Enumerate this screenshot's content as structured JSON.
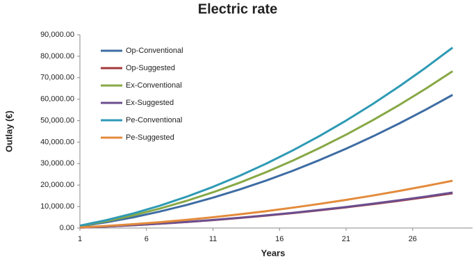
{
  "chart_data": {
    "type": "line",
    "title": "Electric rate",
    "x_label": "Years",
    "y_label": "Outlay (€)",
    "x": [
      1,
      3,
      5,
      7,
      9,
      11,
      13,
      15,
      17,
      19,
      21,
      23,
      25,
      27,
      29
    ],
    "series": [
      {
        "name": "Op-Conventional",
        "color": "#3d6ca3",
        "values": [
          810,
          2720,
          5000,
          7670,
          10710,
          14140,
          17940,
          22120,
          26680,
          31620,
          36940,
          42640,
          48710,
          55170,
          62000
        ]
      },
      {
        "name": "Op-Suggested",
        "color": "#a3393b",
        "values": [
          210,
          710,
          1310,
          2000,
          2800,
          3690,
          4690,
          5780,
          6970,
          8260,
          9650,
          11140,
          12730,
          14420,
          16200
        ]
      },
      {
        "name": "Ex-Conventional",
        "color": "#87a845",
        "values": [
          956,
          3200,
          5890,
          9030,
          12620,
          16640,
          21120,
          26040,
          31410,
          37230,
          43490,
          50200,
          57350,
          64950,
          73000
        ]
      },
      {
        "name": "Ex-Suggested",
        "color": "#6b4f90",
        "values": [
          220,
          720,
          1330,
          2040,
          2850,
          3760,
          4770,
          5880,
          7100,
          8410,
          9820,
          11340,
          12960,
          14680,
          16500
        ]
      },
      {
        "name": "Pe-Conventional",
        "color": "#2e9ab4",
        "values": [
          1100,
          3680,
          6780,
          10390,
          14520,
          19150,
          24310,
          29970,
          36150,
          42840,
          50050,
          57770,
          66000,
          74750,
          84000
        ]
      },
      {
        "name": "Pe-Suggested",
        "color": "#e38b3b",
        "values": [
          290,
          960,
          1780,
          2720,
          3800,
          5020,
          6370,
          7850,
          9470,
          11220,
          13110,
          15130,
          17290,
          19580,
          22000
        ]
      }
    ],
    "xlim": [
      1,
      30.5
    ],
    "xticks": [
      1,
      6,
      11,
      16,
      21,
      26
    ],
    "ylim": [
      0,
      90000
    ],
    "yticks": [
      {
        "value": 0,
        "label": "0.00"
      },
      {
        "value": 10000,
        "label": "10,000.00"
      },
      {
        "value": 20000,
        "label": "20,000.00"
      },
      {
        "value": 30000,
        "label": "30,000.00"
      },
      {
        "value": 40000,
        "label": "40,000.00"
      },
      {
        "value": 50000,
        "label": "50,000.00"
      },
      {
        "value": 60000,
        "label": "60,000.00"
      },
      {
        "value": 70000,
        "label": "70,000.00"
      },
      {
        "value": 80000,
        "label": "80,000.00"
      },
      {
        "value": 90000,
        "label": "90,000.00"
      }
    ],
    "grid": false,
    "legend": "upper left"
  }
}
